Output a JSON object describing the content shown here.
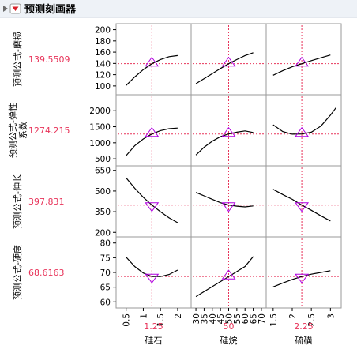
{
  "header": {
    "title": "预测刻画器",
    "collapse_icon": "disclosure-triangle-icon",
    "menu_icon": "red-dropdown-menu-icon"
  },
  "colors": {
    "curve": "#000000",
    "crosshair": "#e8345a",
    "marker": "#b000e0",
    "value": "#e8345a",
    "frame": "#9a9a9a",
    "header_bg": "#eef2f7"
  },
  "chart_data": {
    "type": "line",
    "title": "预测刻画器",
    "grid": false,
    "factors": [
      {
        "name": "硅石",
        "current": 1.25,
        "current_label": "1.25",
        "range": [
          0.3,
          2.3
        ],
        "ticks": [
          0.5,
          1,
          1.5,
          2
        ],
        "tick_labels": [
          "0.5",
          "1",
          "1.5",
          "2"
        ]
      },
      {
        "name": "硅烷",
        "current": 50,
        "current_label": "50",
        "range": [
          29,
          71
        ],
        "ticks": [
          30,
          35,
          40,
          45,
          50,
          55,
          60,
          65,
          70
        ],
        "tick_labels": [
          "30",
          "35",
          "40",
          "45",
          "50",
          "55",
          "60",
          "65",
          "70"
        ]
      },
      {
        "name": "硫磺",
        "current": 2.25,
        "current_label": "2.25",
        "range": [
          1.4,
          3.2
        ],
        "ticks": [
          1.5,
          2,
          2.5,
          3
        ],
        "tick_labels": [
          "1.5",
          "2",
          "2.5",
          "3"
        ]
      }
    ],
    "responses": [
      {
        "name": "预测公式-磨损",
        "value": 139.5509,
        "value_label": "139.5509",
        "ylim": [
          90,
          205
        ],
        "ticks": [
          100,
          120,
          140,
          160,
          180,
          200
        ],
        "tick_labels": [
          "100",
          "120",
          "140",
          "160",
          "180",
          "200"
        ],
        "curves": [
          {
            "x": [
              0.5,
              0.75,
              1.0,
              1.25,
              1.5,
              1.75,
              2.0
            ],
            "y": [
              101,
              116,
              129,
              139.55,
              147,
              152,
              154
            ]
          },
          {
            "x": [
              30,
              35,
              40,
              45,
              50,
              55,
              60,
              65
            ],
            "y": [
              104,
              113,
              122,
              131,
              139.55,
              147,
              154,
              159
            ]
          },
          {
            "x": [
              1.5,
              1.75,
              2.0,
              2.25,
              2.5,
              2.75,
              3.0
            ],
            "y": [
              119,
              127,
              134,
              139.55,
              145,
              150,
              155
            ]
          }
        ]
      },
      {
        "name": "预测公式-弹性系数",
        "value": 1274.215,
        "value_label": "1274.215",
        "ylim": [
          380,
          2400
        ],
        "ticks": [
          500,
          1000,
          1500,
          2000
        ],
        "tick_labels": [
          "500",
          "1000",
          "1500",
          "2000"
        ],
        "curves": [
          {
            "x": [
              0.5,
              0.75,
              1.0,
              1.25,
              1.5,
              1.75,
              2.0
            ],
            "y": [
              600,
              910,
              1120,
              1274.215,
              1380,
              1440,
              1460
            ]
          },
          {
            "x": [
              30,
              35,
              40,
              45,
              50,
              55,
              60,
              65
            ],
            "y": [
              620,
              860,
              1050,
              1190,
              1274.215,
              1330,
              1370,
              1320
            ]
          },
          {
            "x": [
              1.5,
              1.75,
              2.0,
              2.25,
              2.5,
              2.75,
              3.0,
              3.15
            ],
            "y": [
              1560,
              1350,
              1270,
              1274.215,
              1330,
              1520,
              1860,
              2100
            ]
          }
        ]
      },
      {
        "name": "预测公式-伸长",
        "value": 397.831,
        "value_label": "397.831",
        "ylim": [
          190,
          660
        ],
        "ticks": [
          200,
          350,
          500,
          650
        ],
        "tick_labels": [
          "200",
          "350",
          "500",
          "650"
        ],
        "curves": [
          {
            "x": [
              0.5,
              0.75,
              1.0,
              1.25,
              1.5,
              1.75,
              2.0
            ],
            "y": [
              595,
              520,
              455,
              397.831,
              350,
              305,
              270
            ]
          },
          {
            "x": [
              30,
              35,
              40,
              45,
              50,
              55,
              60,
              65
            ],
            "y": [
              490,
              465,
              440,
              415,
              397.831,
              390,
              385,
              392
            ]
          },
          {
            "x": [
              1.5,
              1.75,
              2.0,
              2.25,
              2.5,
              2.75,
              3.0
            ],
            "y": [
              512,
              475,
              440,
              397.831,
              360,
              320,
              283
            ]
          }
        ]
      },
      {
        "name": "预测公式-硬度",
        "value": 68.6163,
        "value_label": "68.6163",
        "ylim": [
          59,
          81
        ],
        "ticks": [
          60,
          65,
          70,
          75,
          80
        ],
        "tick_labels": [
          "60",
          "65",
          "70",
          "75",
          "80"
        ],
        "curves": [
          {
            "x": [
              0.5,
              0.75,
              1.0,
              1.25,
              1.5,
              1.75,
              2.0
            ],
            "y": [
              75.2,
              72.0,
              69.8,
              68.6163,
              68.6,
              69.3,
              70.8
            ]
          },
          {
            "x": [
              30,
              35,
              40,
              45,
              50,
              55,
              60,
              65
            ],
            "y": [
              61.8,
              63.5,
              65.2,
              66.9,
              68.6163,
              70.3,
              72.0,
              75.4
            ]
          },
          {
            "x": [
              1.5,
              1.75,
              2.0,
              2.25,
              2.5,
              2.75,
              3.0
            ],
            "y": [
              65.1,
              66.4,
              67.6,
              68.6163,
              69.4,
              70.0,
              70.6
            ]
          }
        ]
      }
    ]
  }
}
